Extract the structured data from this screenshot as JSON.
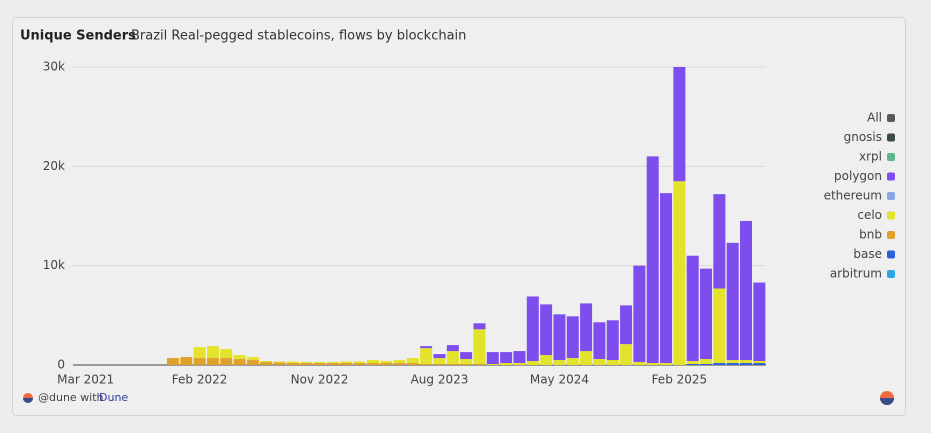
{
  "header": {
    "title": "Unique Senders",
    "subtitle": "Brazil Real-pegged stablecoins, flows by blockchain"
  },
  "footer": {
    "text": "@dune with",
    "link": "Dune"
  },
  "chart_data": {
    "type": "bar",
    "stacked": true,
    "grid": true,
    "legend_position": "right",
    "legend_all": {
      "name": "All",
      "color": "#5a5a5a"
    },
    "ylim": [
      0,
      30000
    ],
    "yticks": [
      0,
      {
        "value": 10000,
        "label": "10k"
      },
      {
        "value": 20000,
        "label": "20k"
      },
      {
        "value": 30000,
        "label": "30k"
      }
    ],
    "categories": [
      "Mar 2021",
      null,
      null,
      null,
      null,
      null,
      null,
      null,
      null,
      "Feb 2022",
      null,
      null,
      null,
      null,
      null,
      null,
      null,
      null,
      "Nov 2022",
      null,
      null,
      null,
      null,
      null,
      null,
      null,
      null,
      "Aug 2023",
      null,
      null,
      null,
      null,
      null,
      null,
      null,
      null,
      "May 2024",
      null,
      null,
      null,
      null,
      null,
      null,
      null,
      null,
      "Feb 2025",
      null,
      null,
      null,
      null,
      null,
      null
    ],
    "series": [
      {
        "name": "gnosis",
        "color": "#3c4a4a",
        "values": [
          0,
          0,
          0,
          0,
          0,
          0,
          0,
          0,
          0,
          0,
          0,
          0,
          0,
          0,
          0,
          0,
          0,
          0,
          0,
          0,
          0,
          0,
          0,
          0,
          0,
          0,
          0,
          0,
          0,
          0,
          0,
          0,
          0,
          0,
          0,
          0,
          0,
          0,
          0,
          0,
          0,
          0,
          0,
          0,
          0,
          0,
          0,
          0,
          0,
          0,
          0,
          0
        ]
      },
      {
        "name": "xrpl",
        "color": "#5fb48f",
        "values": [
          0,
          0,
          0,
          0,
          0,
          0,
          0,
          0,
          0,
          0,
          0,
          0,
          0,
          0,
          0,
          0,
          0,
          0,
          0,
          0,
          0,
          0,
          0,
          0,
          0,
          0,
          0,
          0,
          0,
          0,
          0,
          0,
          0,
          0,
          0,
          0,
          0,
          0,
          0,
          0,
          0,
          0,
          0,
          0,
          0,
          0,
          0,
          0,
          0,
          0,
          0,
          0
        ]
      },
      {
        "name": "polygon",
        "color": "#7d4ded",
        "values": [
          0,
          0,
          0,
          0,
          0,
          0,
          0,
          0,
          0,
          0,
          0,
          0,
          0,
          0,
          0,
          0,
          0,
          0,
          0,
          0,
          0,
          0,
          0,
          0,
          0,
          0,
          200,
          400,
          600,
          700,
          600,
          1200,
          1100,
          1200,
          6500,
          5100,
          4600,
          4200,
          4800,
          3700,
          4000,
          3900,
          9700,
          20800,
          17100,
          11500,
          10600,
          9100,
          9500,
          11800,
          14000,
          7900
        ]
      },
      {
        "name": "ethereum",
        "color": "#8aa6e6",
        "values": [
          0,
          0,
          0,
          0,
          0,
          0,
          0,
          0,
          0,
          0,
          0,
          0,
          0,
          0,
          0,
          0,
          0,
          0,
          0,
          0,
          0,
          0,
          0,
          0,
          0,
          0,
          0,
          0,
          0,
          0,
          0,
          0,
          0,
          0,
          0,
          0,
          0,
          0,
          0,
          0,
          0,
          0,
          0,
          0,
          0,
          0,
          0,
          0,
          0,
          0,
          0,
          0
        ]
      },
      {
        "name": "celo",
        "color": "#e3e32b",
        "values": [
          0,
          0,
          0,
          0,
          0,
          0,
          0,
          0,
          0,
          1100,
          1200,
          900,
          400,
          300,
          100,
          100,
          150,
          100,
          100,
          100,
          150,
          150,
          300,
          200,
          300,
          500,
          1600,
          600,
          1300,
          500,
          3500,
          100,
          200,
          200,
          400,
          1000,
          500,
          700,
          1400,
          600,
          500,
          2100,
          300,
          200,
          200,
          18500,
          300,
          500,
          7500,
          300,
          300,
          200
        ]
      },
      {
        "name": "bnb",
        "color": "#dea22c",
        "values": [
          0,
          0,
          0,
          0,
          0,
          0,
          0,
          700,
          800,
          700,
          700,
          700,
          600,
          500,
          300,
          250,
          200,
          200,
          200,
          200,
          200,
          200,
          200,
          200,
          200,
          200,
          100,
          100,
          100,
          100,
          100,
          0,
          0,
          0,
          0,
          0,
          0,
          0,
          0,
          0,
          0,
          0,
          0,
          0,
          0,
          0,
          0,
          0,
          0,
          0,
          0,
          0
        ]
      },
      {
        "name": "base",
        "color": "#2c5fd8",
        "values": [
          0,
          0,
          0,
          0,
          0,
          0,
          0,
          0,
          0,
          0,
          0,
          0,
          0,
          0,
          0,
          0,
          0,
          0,
          0,
          0,
          0,
          0,
          0,
          0,
          0,
          0,
          0,
          0,
          0,
          0,
          0,
          0,
          0,
          0,
          0,
          0,
          0,
          0,
          0,
          0,
          0,
          0,
          0,
          0,
          0,
          0,
          100,
          100,
          200,
          200,
          200,
          200
        ]
      },
      {
        "name": "arbitrum",
        "color": "#2ea7e6",
        "values": [
          0,
          0,
          0,
          0,
          0,
          0,
          0,
          0,
          0,
          0,
          0,
          0,
          0,
          0,
          0,
          0,
          0,
          0,
          0,
          0,
          0,
          0,
          0,
          0,
          0,
          0,
          0,
          0,
          0,
          0,
          0,
          0,
          0,
          0,
          0,
          0,
          0,
          0,
          0,
          0,
          0,
          0,
          0,
          0,
          0,
          0,
          0,
          0,
          0,
          0,
          0,
          0
        ]
      }
    ]
  }
}
